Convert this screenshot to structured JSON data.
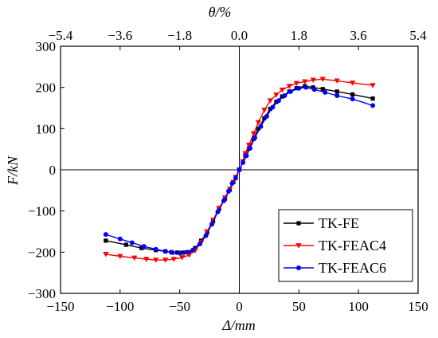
{
  "chart_data": {
    "type": "line",
    "xlabel": "Δ/mm",
    "ylabel": "F/kN",
    "top_xlabel": "θ/%",
    "xlim": [
      -150,
      150
    ],
    "ylim": [
      -300,
      300
    ],
    "x_ticks": [
      -150,
      -100,
      -50,
      0,
      50,
      100,
      150
    ],
    "x_tick_labels": [
      "−150",
      "−100",
      "−50",
      "0",
      "50",
      "100",
      "150"
    ],
    "y_ticks": [
      -300,
      -200,
      -100,
      0,
      100,
      200,
      300
    ],
    "y_tick_labels": [
      "−300",
      "−200",
      "−100",
      "0",
      "100",
      "200",
      "300"
    ],
    "top_ticks": [
      -5.4,
      -3.6,
      -1.8,
      0.0,
      1.8,
      3.6,
      5.4
    ],
    "top_tick_labels": [
      "−5.4",
      "−3.6",
      "−1.8",
      "0.0",
      "1.8",
      "3.6",
      "5.4"
    ],
    "top_xlim": [
      -5.4,
      5.4
    ],
    "grid": false,
    "zero_lines": true,
    "legend_position": "bottom-right",
    "series": [
      {
        "name": "TK-FE",
        "color": "#000000",
        "marker": "square",
        "x": [
          -112,
          -95,
          -82,
          -70,
          -62,
          -57,
          -52,
          -47,
          -42,
          -37,
          -32,
          -27,
          -22,
          -17,
          -12,
          -8,
          -5,
          -3,
          0,
          3,
          5,
          8,
          12,
          16,
          21,
          26,
          31,
          36,
          42,
          48,
          55,
          62,
          70,
          82,
          95,
          112
        ],
        "y": [
          -172,
          -182,
          -190,
          -195,
          -198,
          -200,
          -201,
          -201,
          -200,
          -190,
          -172,
          -152,
          -125,
          -95,
          -70,
          -48,
          -30,
          -18,
          0,
          18,
          35,
          52,
          75,
          100,
          125,
          148,
          165,
          178,
          190,
          198,
          203,
          200,
          196,
          190,
          183,
          173
        ]
      },
      {
        "name": "TK-FEAC4",
        "color": "#ff0000",
        "marker": "triangle-down",
        "x": [
          -112,
          -100,
          -88,
          -78,
          -70,
          -62,
          -55,
          -48,
          -42,
          -37,
          -32,
          -27,
          -22,
          -17,
          -12,
          -8,
          -5,
          -3,
          0,
          3,
          5,
          8,
          12,
          16,
          21,
          26,
          31,
          36,
          42,
          48,
          55,
          62,
          70,
          82,
          95,
          112
        ],
        "y": [
          -205,
          -210,
          -214,
          -217,
          -219,
          -219,
          -217,
          -213,
          -207,
          -196,
          -176,
          -150,
          -122,
          -93,
          -68,
          -47,
          -30,
          -18,
          0,
          20,
          40,
          60,
          88,
          115,
          145,
          168,
          182,
          194,
          203,
          210,
          214,
          218,
          220,
          216,
          211,
          205
        ]
      },
      {
        "name": "TK-FEAC6",
        "color": "#0000ff",
        "marker": "circle",
        "x": [
          -112,
          -100,
          -90,
          -80,
          -70,
          -62,
          -56,
          -50,
          -44,
          -39,
          -33,
          -28,
          -23,
          -18,
          -13,
          -9,
          -6,
          -3,
          0,
          3,
          6,
          9,
          13,
          18,
          23,
          28,
          33,
          38,
          43,
          50,
          56,
          63,
          72,
          82,
          95,
          112
        ],
        "y": [
          -157,
          -168,
          -177,
          -186,
          -193,
          -198,
          -201,
          -202,
          -200,
          -195,
          -180,
          -160,
          -132,
          -102,
          -75,
          -52,
          -33,
          -20,
          0,
          18,
          34,
          52,
          78,
          105,
          130,
          152,
          168,
          180,
          190,
          198,
          200,
          195,
          188,
          180,
          172,
          156
        ]
      }
    ]
  }
}
